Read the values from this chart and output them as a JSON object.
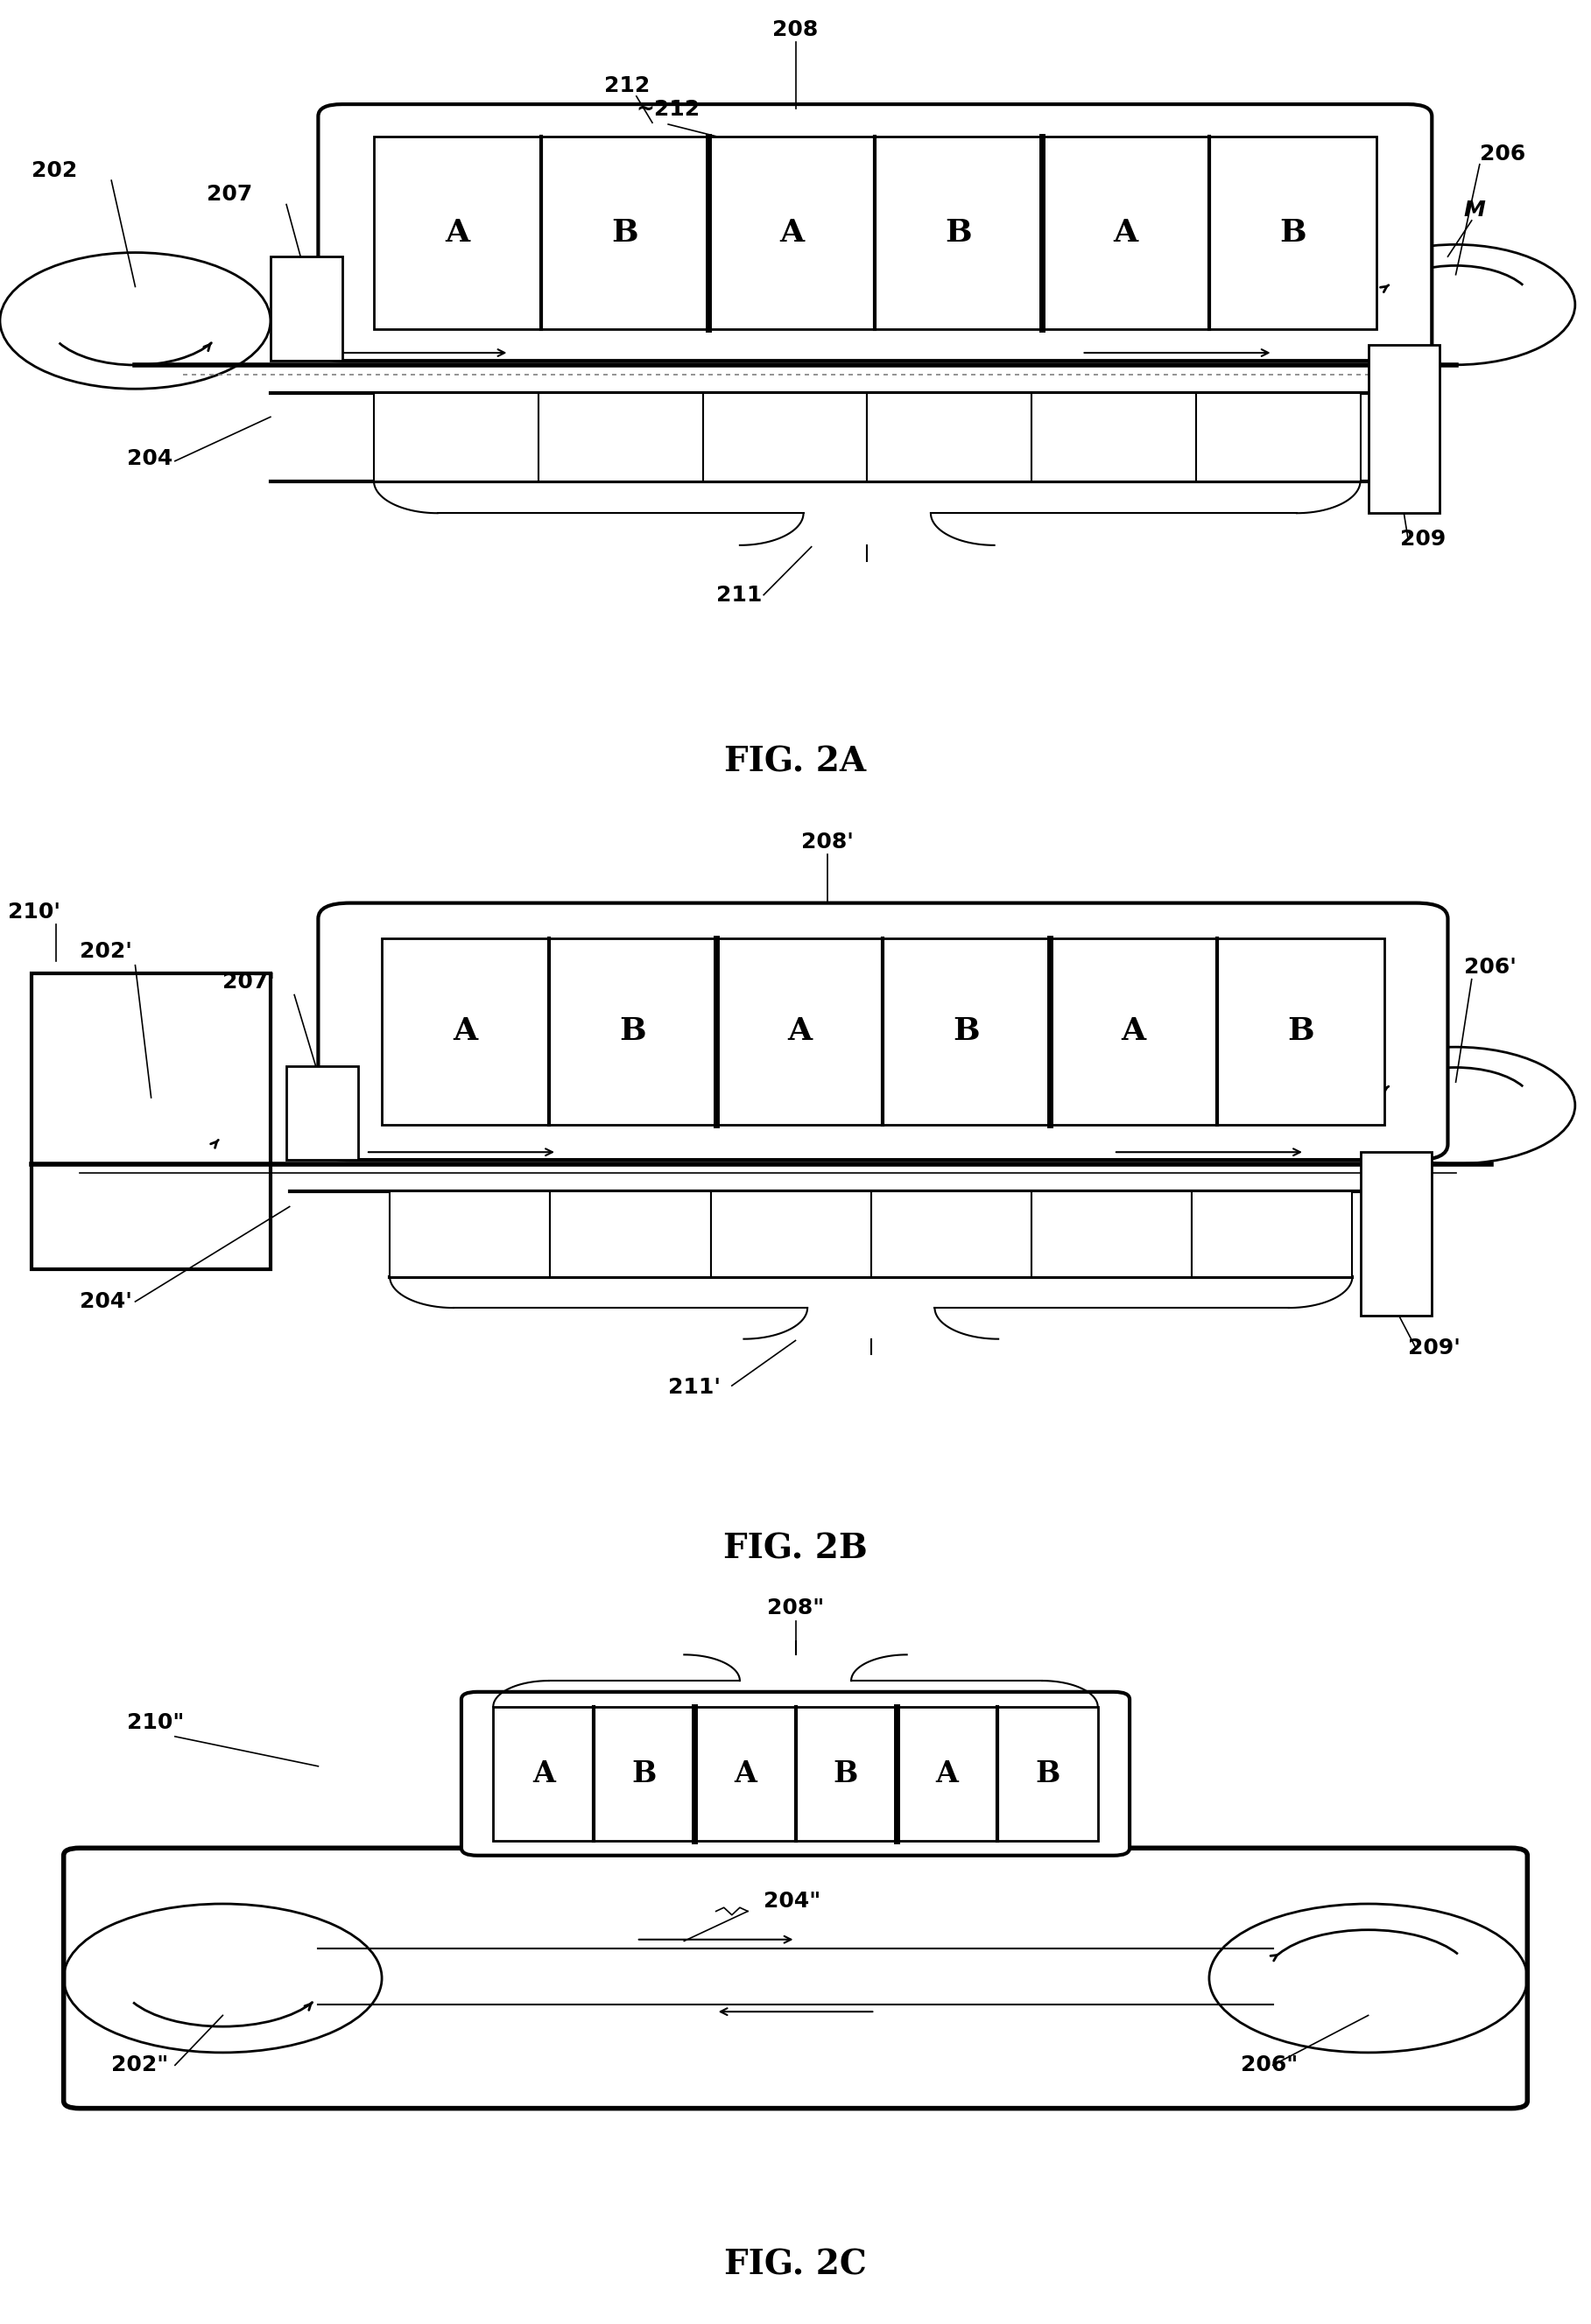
{
  "bg_color": "#ffffff",
  "fig_labels": [
    "FIG. 2A",
    "FIG. 2B",
    "FIG. 2C"
  ],
  "ab_labels": [
    "A",
    "B",
    "A",
    "B",
    "A",
    "B"
  ],
  "lw_thick": 3.0,
  "lw_medium": 2.0,
  "lw_thin": 1.5,
  "label_fontsize": 18,
  "ab_fontsize": 26,
  "caption_fontsize": 28
}
